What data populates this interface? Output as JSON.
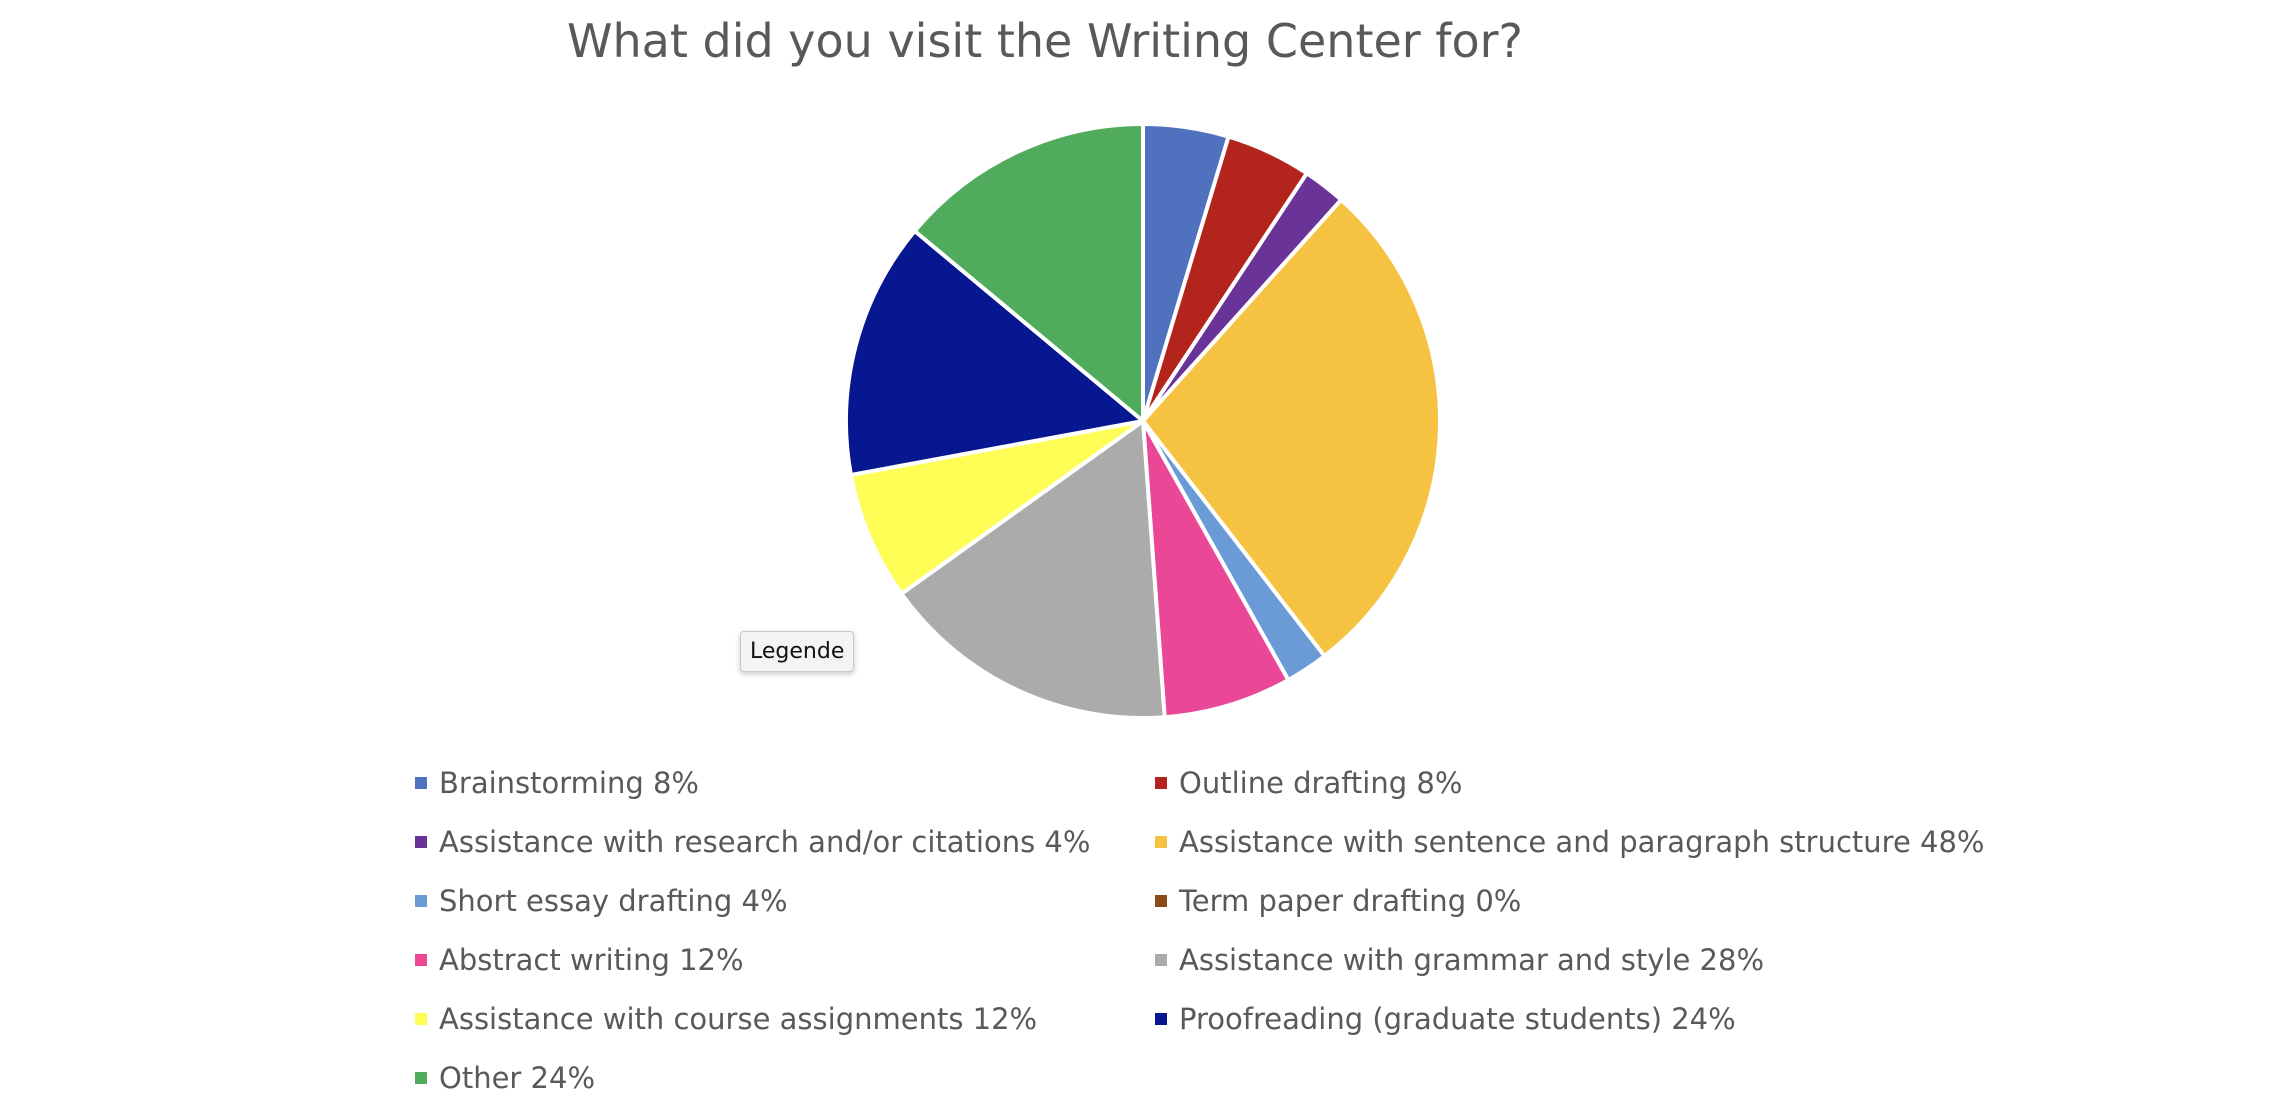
{
  "chart_data": {
    "type": "pie",
    "title": "What did you visit the Writing Center for?",
    "legend_position": "bottom",
    "slices": [
      {
        "label": "Brainstorming 8%",
        "value": 8,
        "color": "#4f71be"
      },
      {
        "label": "Outline drafting 8%",
        "value": 8,
        "color": "#b2241c"
      },
      {
        "label": "Assistance with research and/or citations 4%",
        "value": 4,
        "color": "#6a3398"
      },
      {
        "label": "Assistance with sentence and paragraph structure 48%",
        "value": 48,
        "color": "#f5c242"
      },
      {
        "label": "Short essay drafting 4%",
        "value": 4,
        "color": "#6b9bd7"
      },
      {
        "label": "Term paper drafting 0%",
        "value": 0,
        "color": "#8a4b17"
      },
      {
        "label": "Abstract writing 12%",
        "value": 12,
        "color": "#ea4797"
      },
      {
        "label": "Assistance with grammar and style 28%",
        "value": 28,
        "color": "#acabab"
      },
      {
        "label": "Assistance with course assignments 12%",
        "value": 12,
        "color": "#fefe56"
      },
      {
        "label": "Proofreading (graduate students) 24%",
        "value": 24,
        "color": "#071790"
      },
      {
        "label": "Other 24%",
        "value": 24,
        "color": "#50ac5c"
      }
    ]
  },
  "tooltip": {
    "text": "Legende"
  }
}
